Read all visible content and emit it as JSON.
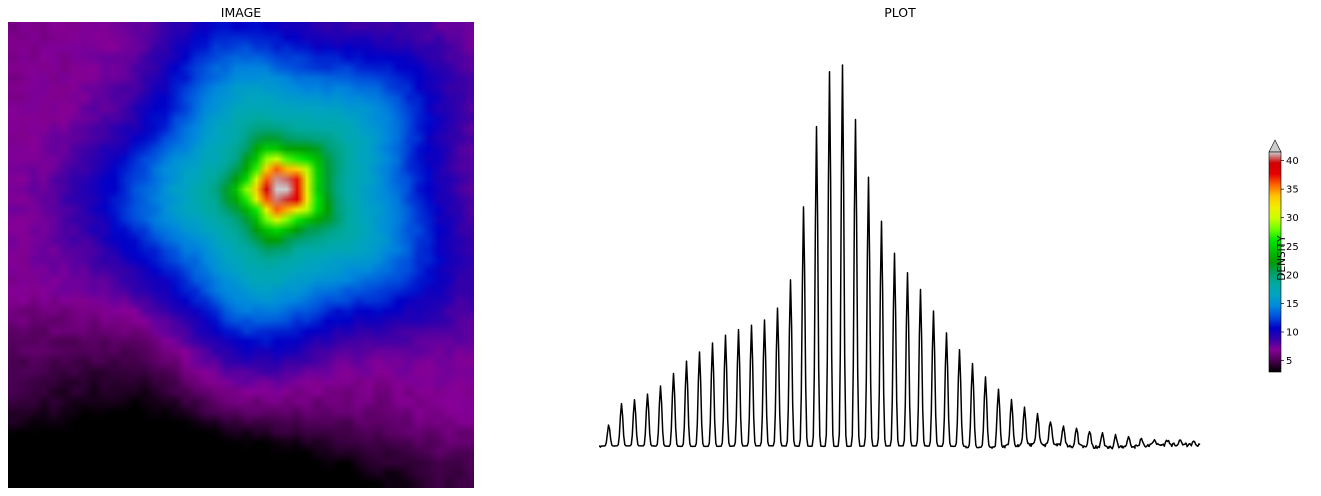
{
  "image_panel": {
    "title": "IMAGE"
  },
  "plot_panel": {
    "title": "PLOT"
  },
  "chart_data": [
    {
      "type": "heatmap",
      "title": "IMAGE",
      "grid": "46x46",
      "peak_value": 40,
      "background_range": [
        0,
        8
      ],
      "colormap": "nipy_spectral",
      "vmin": 3,
      "vmax": 40,
      "axes": "off"
    },
    {
      "type": "line",
      "title": "PLOT",
      "series_color": "#000000",
      "axes": "off",
      "y": [
        0.4,
        4.6,
        4.9,
        5.4,
        6.1,
        7.1,
        8.7,
        9.7,
        10.6,
        11.6,
        12.2,
        12.8,
        13.1,
        13.9,
        15.6,
        19.8,
        30.9,
        36.6,
        42.4,
        38.0,
        31.0,
        25.9,
        21.8,
        19.2,
        17.7,
        15.7,
        13.2,
        11.1,
        9.7,
        8.2,
        6.9,
        5.6,
        4.6,
        3.9,
        3.3,
        2.7,
        2.3,
        2.0,
        1.8,
        1.6,
        1.4,
        1.2,
        1.1,
        1.0,
        0.9,
        0.8,
        0.7
      ],
      "ylim": [
        0,
        42.4
      ]
    },
    {
      "type": "colorbar",
      "label": "DENSITY",
      "ticks": [
        "5",
        "10",
        "15",
        "20",
        "25",
        "30",
        "35",
        "40"
      ],
      "vmin": 3,
      "vmax": 41.5,
      "extend": "max",
      "colormap": "nipy_spectral"
    }
  ]
}
